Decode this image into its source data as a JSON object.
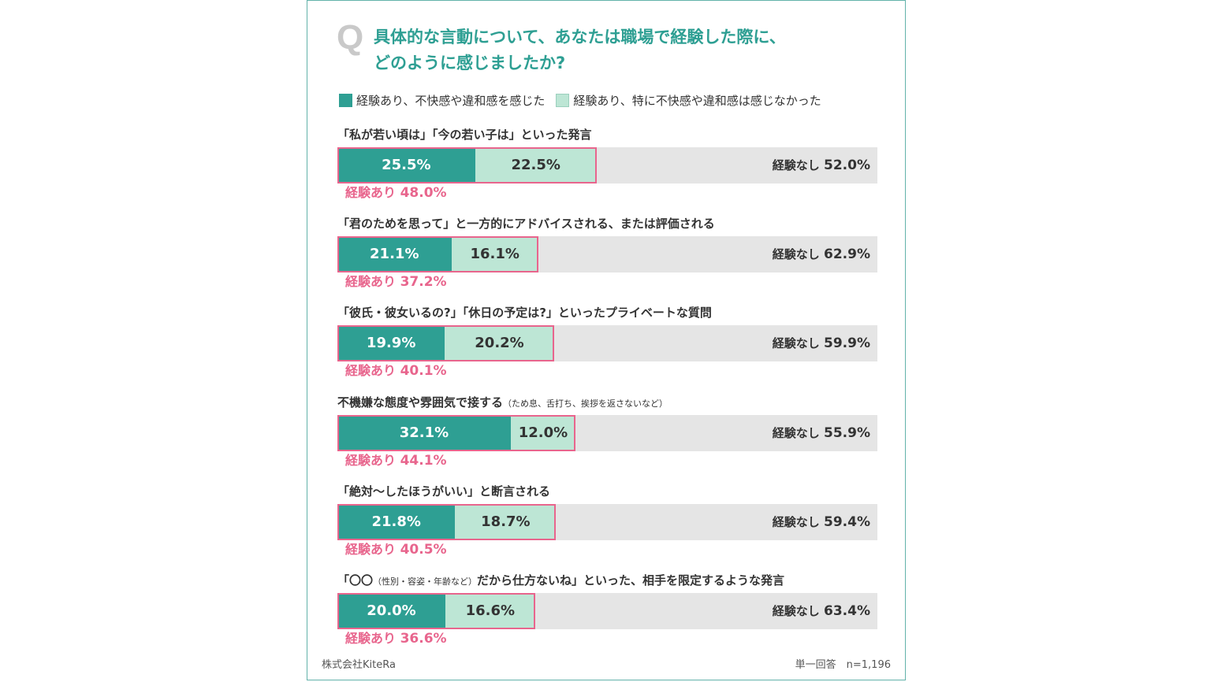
{
  "header": {
    "q_mark": "Q",
    "title_line1": "具体的な言動について、あなたは職場で経験した際に、",
    "title_line2": "どのように感じましたか?"
  },
  "legend": {
    "felt": "経験あり、不快感や違和感を感じた",
    "not_felt": "経験あり、特に不快感や違和感は感じなかった"
  },
  "labels": {
    "experienced_prefix": "経験あり",
    "none_prefix": "経験なし"
  },
  "colors": {
    "accent": "#2e9f93",
    "light": "#bde6d5",
    "pink": "#e8658d",
    "track": "#e5e5e5"
  },
  "chart_data": {
    "type": "bar",
    "orientation": "horizontal",
    "stacked": true,
    "title": "具体的な言動について、あなたは職場で経験した際に、どのように感じましたか?",
    "unit": "%",
    "xlim": [
      0,
      100
    ],
    "categories": [
      {
        "main": "「私が若い頃は」「今の若い子は」といった発言",
        "note": ""
      },
      {
        "main": "「君のためを思って」と一方的にアドバイスされる、または評価される",
        "note": ""
      },
      {
        "main": "「彼氏・彼女いるの?」「休日の予定は?」といったプライベートな質問",
        "note": ""
      },
      {
        "main": "不機嫌な態度や雰囲気で接する",
        "note": "（ため息、舌打ち、挨拶を返さないなど）"
      },
      {
        "main": "「絶対〜したほうがいい」と断言される",
        "note": ""
      },
      {
        "main": "「〇〇",
        "note": "（性別・容姿・年齢など）",
        "main2": "だから仕方ないね」といった、相手を限定するような発言"
      }
    ],
    "series": [
      {
        "name": "経験あり、不快感や違和感を感じた",
        "values": [
          25.5,
          21.1,
          19.9,
          32.1,
          21.8,
          20.0
        ]
      },
      {
        "name": "経験あり、特に不快感や違和感は感じなかった",
        "values": [
          22.5,
          16.1,
          20.2,
          12.0,
          18.7,
          16.6
        ]
      },
      {
        "name": "経験なし",
        "values": [
          52.0,
          62.9,
          59.9,
          55.9,
          59.4,
          63.4
        ]
      }
    ],
    "totals_experienced": [
      48.0,
      37.2,
      40.1,
      44.1,
      40.5,
      36.6
    ]
  },
  "footer": {
    "source": "株式会社KiteRa",
    "sample": "単一回答　n=1,196"
  }
}
